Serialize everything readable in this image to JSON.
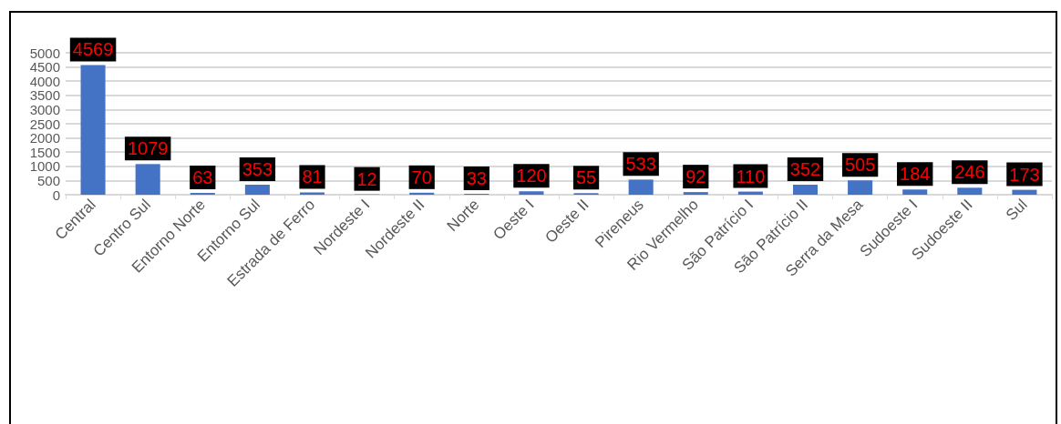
{
  "chart_data": {
    "type": "bar",
    "categories": [
      "Central",
      "Centro Sul",
      "Entorno Norte",
      "Entorno Sul",
      "Estrada de Ferro",
      "Nordeste I",
      "Nordeste II",
      "Norte",
      "Oeste I",
      "Oeste II",
      "Pireneus",
      "Rio Vermelho",
      "São Patrício I",
      "São Patrício II",
      "Serra da Mesa",
      "Sudoeste I",
      "Sudoeste II",
      "Sul"
    ],
    "values": [
      4569,
      1079,
      63,
      353,
      81,
      12,
      70,
      33,
      120,
      55,
      533,
      92,
      110,
      352,
      505,
      184,
      246,
      173
    ],
    "color": "#4472c4",
    "ylim": [
      0,
      5000
    ],
    "yticks": [
      0,
      500,
      1000,
      1500,
      2000,
      2500,
      3000,
      3500,
      4000,
      4500,
      5000
    ],
    "grid": "y",
    "data_labels": true
  }
}
